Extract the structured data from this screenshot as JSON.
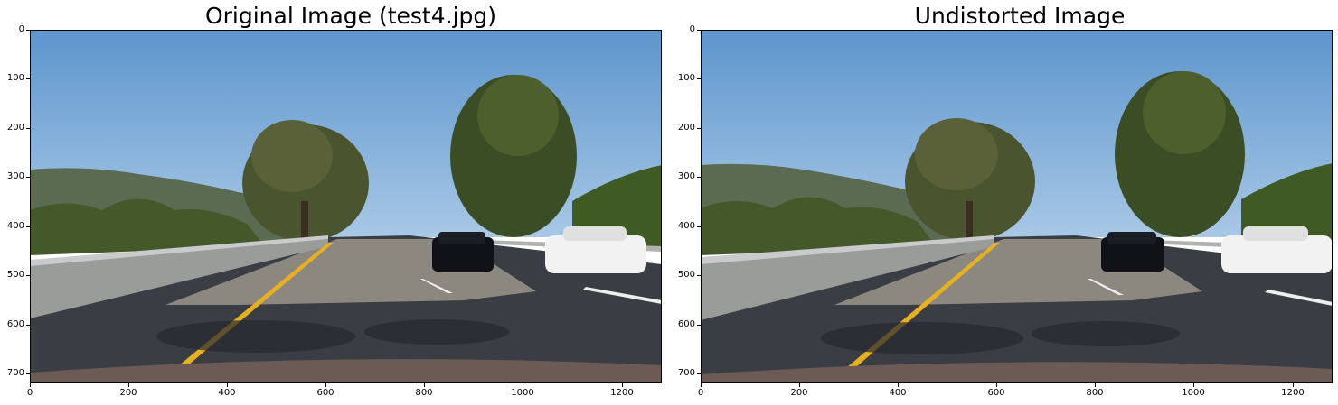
{
  "panels": [
    {
      "title": "Original Image (test4.jpg)",
      "yticks": [
        "0",
        "100",
        "200",
        "300",
        "400",
        "500",
        "600",
        "700"
      ],
      "xticks": [
        "0",
        "200",
        "400",
        "600",
        "800",
        "1000",
        "1200"
      ]
    },
    {
      "title": "Undistorted Image",
      "yticks": [
        "0",
        "100",
        "200",
        "300",
        "400",
        "500",
        "600",
        "700"
      ],
      "xticks": [
        "0",
        "200",
        "400",
        "600",
        "800",
        "1000",
        "1200"
      ]
    }
  ],
  "scene": {
    "sky_color": "#6fa3d6",
    "road_color": "#3a3d44",
    "lane_line_color": "#e6b021",
    "tree_color": "#3f5128",
    "car_left_color": "#101218",
    "car_right_color": "#f2f2f2"
  }
}
